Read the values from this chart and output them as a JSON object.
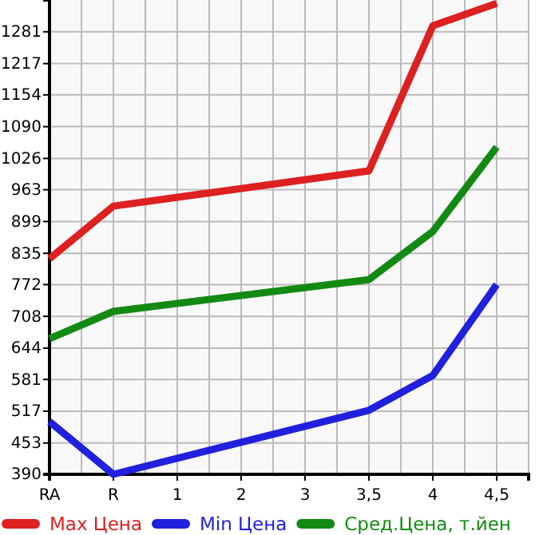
{
  "chart_data": {
    "type": "line",
    "categories": [
      "RA",
      "R",
      "1",
      "2",
      "3",
      "3,5",
      "4",
      "4,5"
    ],
    "series": [
      {
        "name": "Max Цена",
        "color": "#dd2020",
        "values": [
          824,
          930,
          null,
          null,
          null,
          1001,
          1293,
          1338
        ]
      },
      {
        "name": "Min Цена",
        "color": "#2020dd",
        "values": [
          496,
          390,
          null,
          null,
          null,
          519,
          589,
          772
        ]
      },
      {
        "name": "Сред.Цена, т.йен",
        "color": "#138a13",
        "values": [
          663,
          718,
          null,
          null,
          null,
          782,
          879,
          1049
        ]
      }
    ],
    "ylim": [
      390,
      1345
    ],
    "yticks": [
      390,
      453,
      517,
      581,
      644,
      708,
      772,
      835,
      899,
      963,
      1026,
      1090,
      1154,
      1217,
      1281
    ],
    "grid": true,
    "legend": "bottom",
    "marker": "none",
    "line_style": "solid"
  }
}
